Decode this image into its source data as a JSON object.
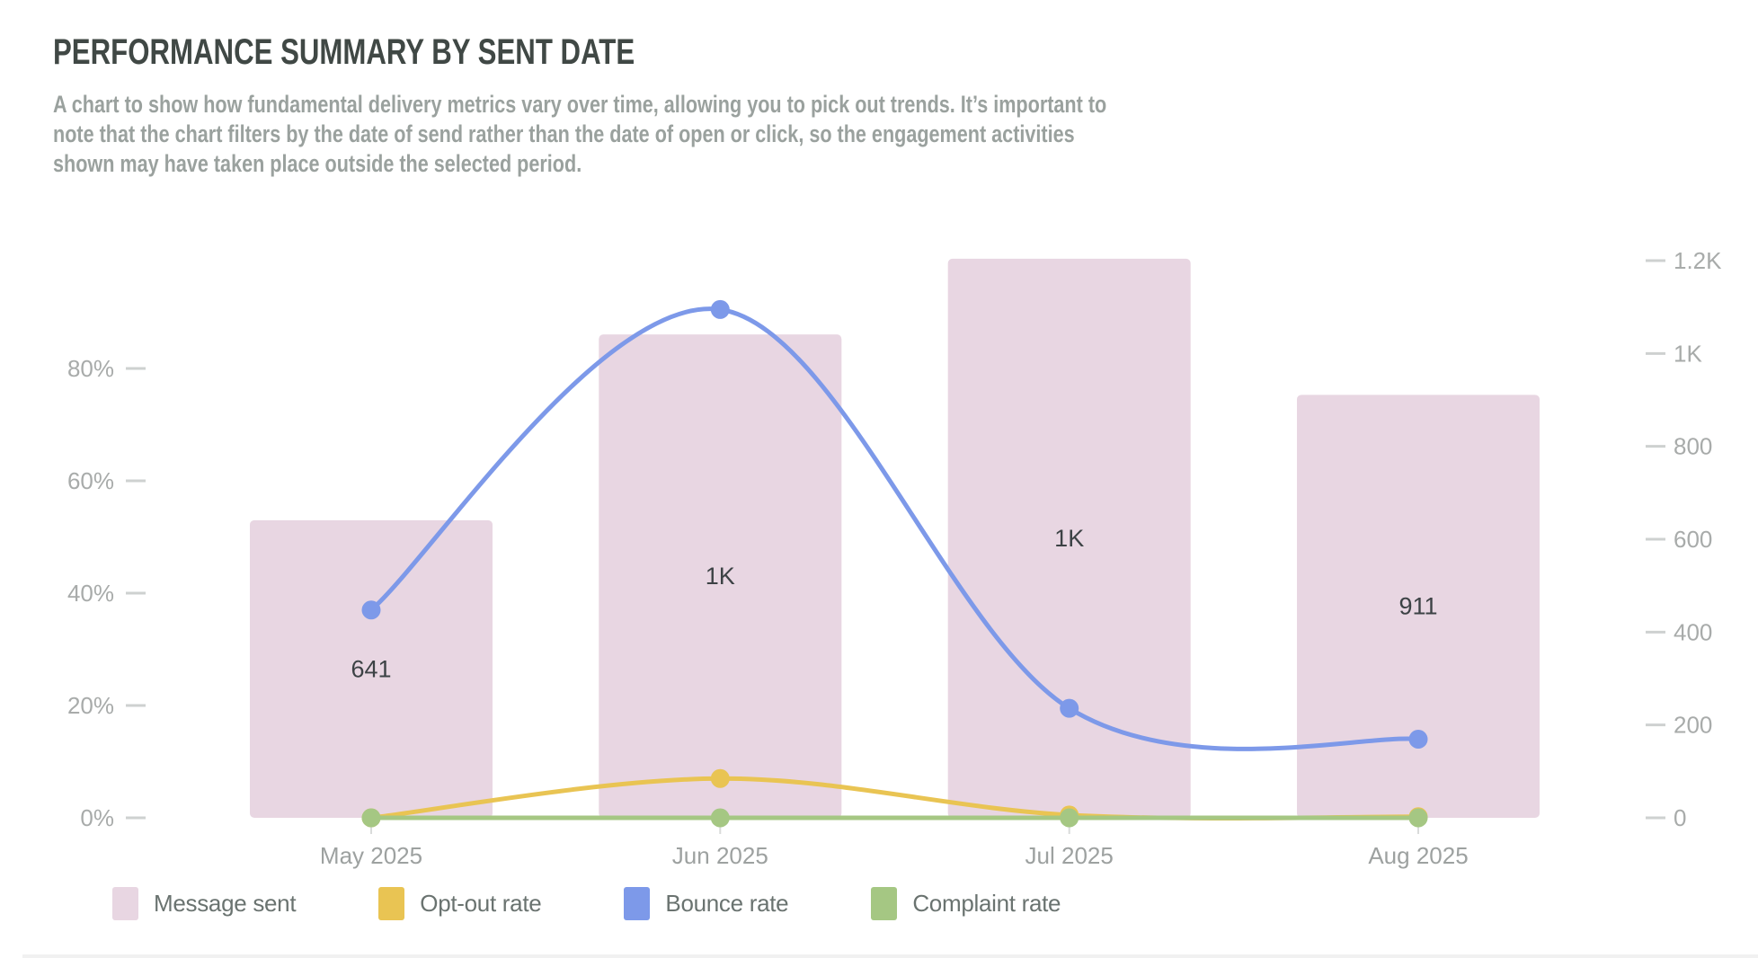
{
  "header": {
    "title": "PERFORMANCE SUMMARY BY SENT DATE",
    "description_lines": [
      "A chart to show how fundamental delivery metrics vary over time, allowing you to pick out trends. It’s important to",
      "note that the chart filters by the date of send rather than the date of open or click, so the engagement activities",
      "shown may have taken place outside the selected period."
    ]
  },
  "chart_data": {
    "type": "bar",
    "subtype": "combo-bar-line-dual-axis",
    "categories": [
      "May 2025",
      "Jun 2025",
      "Jul 2025",
      "Aug 2025"
    ],
    "bar_series": {
      "name": "Message sent",
      "values": [
        641,
        1041,
        1204,
        911
      ],
      "labels": [
        "641",
        "1K",
        "1K",
        "911"
      ],
      "color": "#e8d6e2",
      "axis": "right"
    },
    "line_series": [
      {
        "name": "Opt-out rate",
        "values_pct": [
          0,
          7,
          0.5,
          0.2
        ],
        "color": "#e9c453",
        "axis": "left"
      },
      {
        "name": "Complaint rate",
        "values_pct": [
          0,
          0,
          0,
          0
        ],
        "color": "#a5c783",
        "axis": "left"
      },
      {
        "name": "Bounce rate",
        "values_pct": [
          37,
          90.5,
          19.5,
          14
        ],
        "color": "#7d99e9",
        "axis": "left"
      }
    ],
    "left_axis": {
      "tick_labels": [
        "0%",
        "20%",
        "40%",
        "60%",
        "80%"
      ],
      "tick_values": [
        0,
        20,
        40,
        60,
        80
      ],
      "unit": "%",
      "max": 100
    },
    "right_axis": {
      "tick_labels": [
        "0",
        "200",
        "400",
        "600",
        "800",
        "1K",
        "1.2K"
      ],
      "tick_values": [
        0,
        200,
        400,
        600,
        800,
        1000,
        1200
      ],
      "max": 1200
    },
    "grid": "off",
    "legend_position": "bottom",
    "legend": [
      {
        "label": "Message sent",
        "color": "#e8d6e2"
      },
      {
        "label": "Opt-out rate",
        "color": "#e9c453"
      },
      {
        "label": "Bounce rate",
        "color": "#7d99e9"
      },
      {
        "label": "Complaint rate",
        "color": "#a5c783"
      }
    ]
  }
}
